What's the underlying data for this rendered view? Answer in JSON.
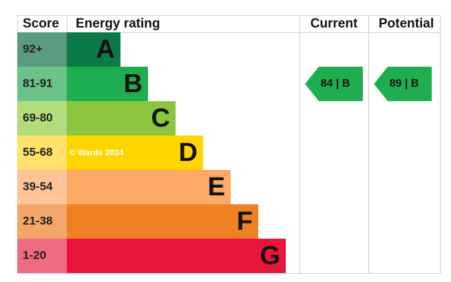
{
  "header": {
    "score": "Score",
    "rating": "Energy rating",
    "current": "Current",
    "potential": "Potential"
  },
  "watermark": "© Wards 2024",
  "rows": [
    {
      "score": "92+",
      "letter": "A",
      "color": "#0b7a47",
      "score_color": "#5a9b7f"
    },
    {
      "score": "81-91",
      "letter": "B",
      "color": "#1fae4f",
      "score_color": "#6cc38a",
      "current": "84 | B",
      "potential": "89 | B"
    },
    {
      "score": "69-80",
      "letter": "C",
      "color": "#8cc63e",
      "score_color": "#b2db7b"
    },
    {
      "score": "55-68",
      "letter": "D",
      "color": "#ffd500",
      "score_color": "#ffe26a"
    },
    {
      "score": "39-54",
      "letter": "E",
      "color": "#fcaa65",
      "score_color": "#fdc49a"
    },
    {
      "score": "21-38",
      "letter": "F",
      "color": "#ef8023",
      "score_color": "#f4a66a"
    },
    {
      "score": "1-20",
      "letter": "G",
      "color": "#e9153b",
      "score_color": "#ef6b84"
    }
  ]
}
